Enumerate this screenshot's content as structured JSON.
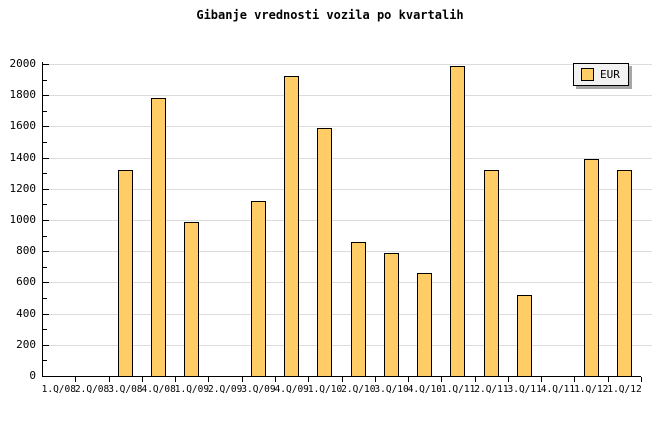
{
  "title": "Gibanje vrednosti vozila po kvartalih",
  "legend": {
    "label": "EUR"
  },
  "colors": {
    "bar_fill": "#FFCC66",
    "bar_border": "#000000",
    "grid": "#DCDCDC",
    "axis": "#000000",
    "legend_bg": "#F2F2F2",
    "legend_shadow": "#A6A6A6"
  },
  "chart_data": {
    "type": "bar",
    "title": "Gibanje vrednosti vozila po kvartalih",
    "series_name": "EUR",
    "categories": [
      "1.Q/08",
      "2.Q/08",
      "3.Q/08",
      "4.Q/08",
      "1.Q/09",
      "2.Q/09",
      "3.Q/09",
      "4.Q/09",
      "1.Q/10",
      "2.Q/10",
      "3.Q/10",
      "4.Q/10",
      "1.Q/11",
      "2.Q/11",
      "3.Q/11",
      "4.Q/11",
      "1.Q/12",
      "1.Q/12"
    ],
    "values": [
      null,
      null,
      1320,
      1780,
      990,
      null,
      1120,
      1920,
      1590,
      860,
      790,
      660,
      1990,
      1320,
      520,
      null,
      1390,
      1320
    ],
    "xlabel": "",
    "ylabel": "",
    "ylim": [
      0,
      2000
    ],
    "ytick_interval": 200,
    "yminortick_interval": 100,
    "grid": true,
    "legend_position": "top-right"
  }
}
